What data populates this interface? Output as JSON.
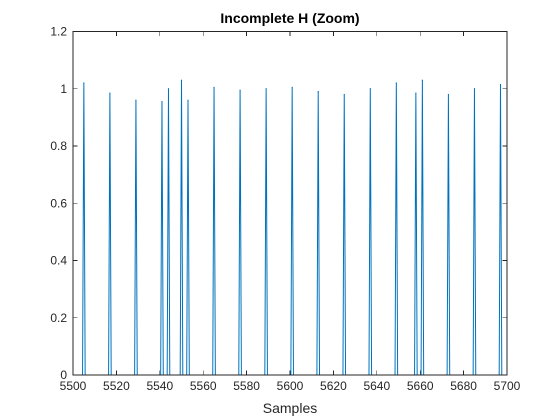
{
  "chart_data": {
    "type": "line",
    "title": "Incomplete H (Zoom)",
    "xlabel": "Samples",
    "ylabel": "",
    "xlim": [
      5500,
      5700
    ],
    "ylim": [
      0,
      1.2
    ],
    "x_ticks": [
      5500,
      5520,
      5540,
      5560,
      5580,
      5600,
      5620,
      5640,
      5660,
      5680,
      5700
    ],
    "y_ticks": [
      0,
      0.2,
      0.4,
      0.6,
      0.8,
      1,
      1.2
    ],
    "y_tick_labels": [
      "0",
      "0.2",
      "0.4",
      "0.6",
      "0.8",
      "1",
      "1.2"
    ],
    "grid": false,
    "box": true,
    "series": [
      {
        "color": "#0072bd",
        "peaks": [
          {
            "x": 5505,
            "y": 1.02
          },
          {
            "x": 5517,
            "y": 0.985
          },
          {
            "x": 5529,
            "y": 0.96
          },
          {
            "x": 5541,
            "y": 0.955
          },
          {
            "x": 5544,
            "y": 1.0
          },
          {
            "x": 5550,
            "y": 1.03
          },
          {
            "x": 5553,
            "y": 0.96
          },
          {
            "x": 5565,
            "y": 1.005
          },
          {
            "x": 5577,
            "y": 0.995
          },
          {
            "x": 5589,
            "y": 1.0
          },
          {
            "x": 5601,
            "y": 1.005
          },
          {
            "x": 5613,
            "y": 0.99
          },
          {
            "x": 5625,
            "y": 0.98
          },
          {
            "x": 5637,
            "y": 1.0
          },
          {
            "x": 5649,
            "y": 1.02
          },
          {
            "x": 5658,
            "y": 0.985
          },
          {
            "x": 5661,
            "y": 1.03
          },
          {
            "x": 5673,
            "y": 0.98
          },
          {
            "x": 5685,
            "y": 1.0
          },
          {
            "x": 5697,
            "y": 1.015
          }
        ]
      }
    ]
  }
}
